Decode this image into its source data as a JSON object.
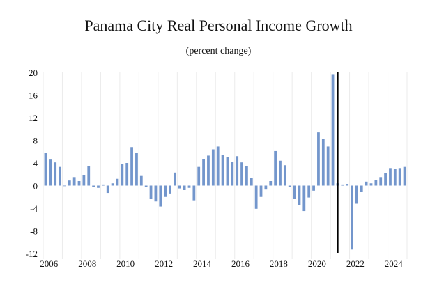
{
  "chart_data": {
    "type": "bar",
    "title": "Panama City Real Personal Income Growth",
    "subtitle": "(percent change)",
    "xlabel": "",
    "ylabel": "",
    "ylim": [
      -12,
      20
    ],
    "yticks": [
      20,
      16,
      12,
      8,
      4,
      0,
      -4,
      -8,
      -12
    ],
    "xtick_labels": [
      "2006",
      "2008",
      "2010",
      "2012",
      "2014",
      "2016",
      "2018",
      "2020",
      "2022",
      "2024"
    ],
    "forecast_divider_after_index": 60,
    "bar_color": "#7396cc",
    "divider_color": "#000000",
    "series": [
      {
        "name": "Real personal income growth",
        "values": [
          5.8,
          4.6,
          4.1,
          3.3,
          0.0,
          0.9,
          1.5,
          0.8,
          1.8,
          3.4,
          -0.3,
          -0.4,
          0.2,
          -1.3,
          0.4,
          1.2,
          3.8,
          4.0,
          6.8,
          5.8,
          1.7,
          -0.3,
          -2.4,
          -2.8,
          -3.7,
          -2.0,
          -1.4,
          2.3,
          -0.5,
          -0.8,
          -0.4,
          -2.6,
          3.3,
          4.7,
          5.3,
          6.4,
          6.9,
          5.4,
          5.0,
          4.2,
          5.2,
          4.1,
          3.5,
          1.4,
          -4.1,
          -2.0,
          -0.7,
          0.8,
          6.1,
          4.4,
          3.6,
          -0.2,
          -2.4,
          -3.4,
          -4.5,
          -2.1,
          -0.9,
          9.4,
          8.2,
          6.9,
          19.7,
          0.4,
          0.2,
          0.3,
          -11.3,
          -3.2,
          -1.1,
          0.7,
          0.4,
          1.0,
          1.5,
          2.2,
          3.1,
          3.0,
          3.1,
          3.3
        ]
      }
    ]
  }
}
